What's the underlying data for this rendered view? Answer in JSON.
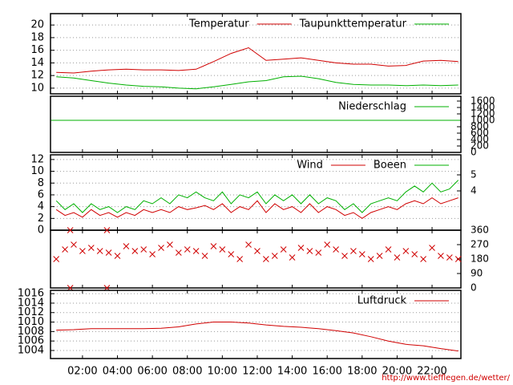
{
  "chart_data": [
    {
      "type": "line",
      "xlim": [
        0.17,
        23.65
      ],
      "ylim": [
        9.1,
        21.8
      ],
      "yticks": [
        10,
        12,
        14,
        16,
        18,
        20
      ],
      "grid": true,
      "legend": "top-right",
      "x": [
        0.5,
        1.5,
        2.5,
        3.5,
        4.5,
        5.5,
        6.5,
        7.5,
        8.5,
        9.5,
        10.5,
        11.5,
        12.5,
        13.5,
        14.5,
        15.5,
        16.5,
        17.5,
        18.5,
        19.5,
        20.5,
        21.5,
        22.5,
        23.5
      ],
      "series": [
        {
          "name": "Temperatur",
          "color": "#d00000",
          "values": [
            12.5,
            12.4,
            12.7,
            12.9,
            13.0,
            12.9,
            12.9,
            12.8,
            13.0,
            14.2,
            15.5,
            16.4,
            14.4,
            14.6,
            14.8,
            14.4,
            14.0,
            13.8,
            13.8,
            13.5,
            13.6,
            14.3,
            14.4,
            14.2
          ]
        },
        {
          "name": "Taupunkttemperatur",
          "color": "#00b000",
          "values": [
            11.8,
            11.6,
            11.2,
            10.8,
            10.5,
            10.3,
            10.2,
            10.0,
            9.9,
            10.2,
            10.6,
            11.0,
            11.2,
            11.8,
            11.9,
            11.5,
            10.9,
            10.6,
            10.5,
            10.5,
            10.4,
            10.5,
            10.4,
            10.5
          ]
        }
      ]
    },
    {
      "type": "line",
      "xlim": [
        0.17,
        23.65
      ],
      "ylim": [
        0,
        1
      ],
      "y2lim": [
        0,
        1750
      ],
      "y2ticks": [
        0,
        200,
        400,
        600,
        800,
        1000,
        1200,
        1400,
        1600
      ],
      "grid": false,
      "legend": "top-right",
      "x": [
        0.2,
        23.6
      ],
      "series": [
        {
          "name": "Niederschlag",
          "color": "#00b000",
          "axis": "y2",
          "values": [
            1000,
            1000
          ]
        }
      ]
    },
    {
      "type": "line",
      "xlim": [
        0.17,
        23.65
      ],
      "ylim": [
        0,
        12.8
      ],
      "yticks": [
        0,
        2,
        4,
        6,
        8,
        10,
        12
      ],
      "y2lim": [
        1.55,
        6.25
      ],
      "y2ticks": [
        4,
        5
      ],
      "grid": true,
      "legend": "top-right",
      "x": [
        0.5,
        1,
        1.5,
        2,
        2.5,
        3,
        3.5,
        4,
        4.5,
        5,
        5.5,
        6,
        6.5,
        7,
        7.5,
        8,
        8.5,
        9,
        9.5,
        10,
        10.5,
        11,
        11.5,
        12,
        12.5,
        13,
        13.5,
        14,
        14.5,
        15,
        15.5,
        16,
        16.5,
        17,
        17.5,
        18,
        18.5,
        19,
        19.5,
        20,
        20.5,
        21,
        21.5,
        22,
        22.5,
        23,
        23.5
      ],
      "series": [
        {
          "name": "Wind",
          "color": "#d00000",
          "values": [
            3.5,
            2.5,
            3.0,
            2.2,
            3.5,
            2.5,
            3.0,
            2.2,
            3.0,
            2.5,
            3.5,
            3.0,
            3.5,
            3.0,
            4.0,
            3.5,
            3.8,
            4.2,
            3.5,
            4.5,
            3.0,
            4.0,
            3.5,
            5.0,
            3.0,
            4.5,
            3.5,
            4.0,
            3.0,
            4.5,
            3.0,
            4.0,
            3.5,
            2.5,
            3.0,
            2.0,
            3.0,
            3.5,
            4.0,
            3.5,
            4.5,
            5.0,
            4.5,
            5.5,
            4.5,
            5.0,
            5.5
          ]
        },
        {
          "name": "Boeen",
          "color": "#00b000",
          "values": [
            5.0,
            3.5,
            4.5,
            3.0,
            4.5,
            3.5,
            4.0,
            3.0,
            4.0,
            3.5,
            5.0,
            4.5,
            5.5,
            4.5,
            6.0,
            5.5,
            6.5,
            5.5,
            5.0,
            6.5,
            4.5,
            6.0,
            5.5,
            6.5,
            4.5,
            6.0,
            5.0,
            6.0,
            4.5,
            6.0,
            4.5,
            5.5,
            5.0,
            3.5,
            4.5,
            3.0,
            4.5,
            5.0,
            5.5,
            5.0,
            6.5,
            7.5,
            6.5,
            8.0,
            6.5,
            7.0,
            8.5
          ]
        }
      ]
    },
    {
      "type": "scatter",
      "xlim": [
        0.17,
        23.65
      ],
      "ylim": [
        0,
        360
      ],
      "y2lim": [
        0,
        360
      ],
      "y2ticks": [
        0,
        90,
        180,
        270,
        360
      ],
      "grid": false,
      "x": [
        0.5,
        1,
        1.5,
        2,
        2.5,
        3,
        3.5,
        4,
        4.5,
        5,
        5.5,
        6,
        6.5,
        7,
        7.5,
        8,
        8.5,
        9,
        9.5,
        10,
        10.5,
        11,
        11.5,
        12,
        12.5,
        13,
        13.5,
        14,
        14.5,
        15,
        15.5,
        16,
        16.5,
        17,
        17.5,
        18,
        18.5,
        19,
        19.5,
        20,
        20.5,
        21,
        21.5,
        22,
        22.5,
        23,
        23.5,
        1.3,
        1.3,
        3.4,
        3.4
      ],
      "series": [
        {
          "color": "#d00000",
          "values": [
            180,
            240,
            270,
            230,
            250,
            230,
            220,
            200,
            260,
            230,
            240,
            210,
            250,
            270,
            220,
            240,
            230,
            200,
            260,
            240,
            210,
            180,
            270,
            230,
            180,
            200,
            240,
            190,
            250,
            230,
            220,
            270,
            240,
            200,
            230,
            210,
            180,
            200,
            240,
            190,
            230,
            210,
            180,
            250,
            200,
            190,
            180,
            0,
            360,
            0,
            360
          ]
        }
      ]
    },
    {
      "type": "line",
      "xlim": [
        0.17,
        23.65
      ],
      "ylim": [
        1002.3,
        1016.7
      ],
      "yticks": [
        1004,
        1006,
        1008,
        1010,
        1012,
        1014,
        1016
      ],
      "grid": true,
      "legend": "top-right",
      "xticks": [
        {
          "value": 2,
          "label": "02:00"
        },
        {
          "value": 4,
          "label": "04:00"
        },
        {
          "value": 6,
          "label": "06:00"
        },
        {
          "value": 8,
          "label": "08:00"
        },
        {
          "value": 10,
          "label": "10:00"
        },
        {
          "value": 12,
          "label": "12:00"
        },
        {
          "value": 14,
          "label": "14:00"
        },
        {
          "value": 16,
          "label": "16:00"
        },
        {
          "value": 18,
          "label": "18:00"
        },
        {
          "value": 20,
          "label": "20:00"
        },
        {
          "value": 22,
          "label": "22:00"
        }
      ],
      "x": [
        0.5,
        1.5,
        2.5,
        3.5,
        4.5,
        5.5,
        6.5,
        7.5,
        8.5,
        9.5,
        10.5,
        11.5,
        12.5,
        13.5,
        14.5,
        15.5,
        16.5,
        17.5,
        18.5,
        19.5,
        20.5,
        21.5,
        22.5,
        23.5
      ],
      "series": [
        {
          "name": "Luftdruck",
          "color": "#d00000",
          "values": [
            1008.3,
            1008.4,
            1008.6,
            1008.6,
            1008.6,
            1008.6,
            1008.7,
            1009.0,
            1009.6,
            1010.0,
            1010.0,
            1009.8,
            1009.4,
            1009.1,
            1008.9,
            1008.6,
            1008.2,
            1007.7,
            1006.9,
            1006.0,
            1005.3,
            1005.0,
            1004.4,
            1003.9
          ]
        }
      ]
    }
  ],
  "source": "http://www.tiefflegen.de/wetter/"
}
